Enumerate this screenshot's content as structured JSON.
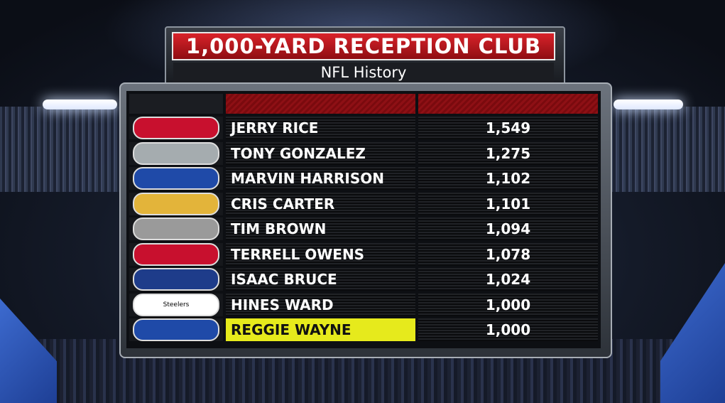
{
  "header": {
    "title": "1,000-YARD RECEPTION CLUB",
    "subtitle": "NFL History"
  },
  "rows": [
    {
      "name": "JERRY RICE",
      "value": "1,549",
      "logo": "49ers-logo",
      "logo_color": "#c8102e",
      "highlight": false
    },
    {
      "name": "TONY GONZALEZ",
      "value": "1,275",
      "logo": "falcons-logo",
      "logo_color": "#a5acaf",
      "highlight": false
    },
    {
      "name": "MARVIN HARRISON",
      "value": "1,102",
      "logo": "colts-logo",
      "logo_color": "#1f4aa8",
      "highlight": false
    },
    {
      "name": "CRIS CARTER",
      "value": "1,101",
      "logo": "vikings-logo",
      "logo_color": "#e3b43a",
      "highlight": false
    },
    {
      "name": "TIM BROWN",
      "value": "1,094",
      "logo": "raiders-logo",
      "logo_color": "#9a9a9a",
      "highlight": false
    },
    {
      "name": "TERRELL OWENS",
      "value": "1,078",
      "logo": "49ers-logo",
      "logo_color": "#c8102e",
      "highlight": false
    },
    {
      "name": "ISAAC BRUCE",
      "value": "1,024",
      "logo": "rams-logo",
      "logo_color": "#1e3c8a",
      "highlight": false
    },
    {
      "name": "HINES WARD",
      "value": "1,000",
      "logo": "steelers-logo",
      "logo_color": "#ffffff",
      "logo_text": "Steelers",
      "highlight": false
    },
    {
      "name": "REGGIE WAYNE",
      "value": "1,000",
      "logo": "colts-logo",
      "logo_color": "#1f4aa8",
      "highlight": true
    }
  ],
  "colors": {
    "title_red": "#c41a21",
    "highlight_yellow": "#e6ea1c"
  }
}
